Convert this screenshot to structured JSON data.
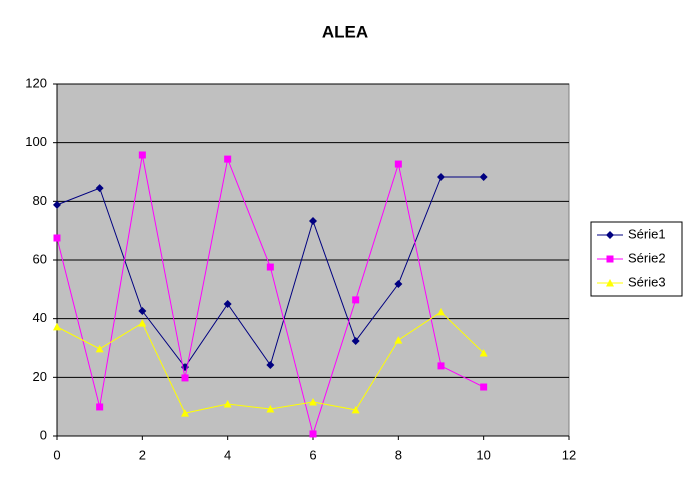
{
  "chart_data": {
    "type": "line",
    "title": "ALEA",
    "x": [
      0,
      1,
      2,
      3,
      4,
      5,
      6,
      7,
      8,
      9,
      10
    ],
    "series": [
      {
        "name": "Série1",
        "color": "#000080",
        "marker": "diamond",
        "values": [
          78.8,
          84.5,
          42.6,
          23.5,
          45,
          24.2,
          73.3,
          32.4,
          51.8,
          88.3,
          88.3
        ]
      },
      {
        "name": "Série2",
        "color": "#ff00ff",
        "marker": "square",
        "values": [
          67.5,
          9.9,
          95.8,
          19.8,
          94.4,
          57.6,
          0.7,
          46.4,
          92.7,
          23.9,
          16.7
        ]
      },
      {
        "name": "Série3",
        "color": "#ffff00",
        "marker": "triangle",
        "values": [
          37.2,
          29.7,
          38.5,
          7.8,
          10.9,
          9.2,
          11.6,
          8.9,
          32.7,
          42.3,
          28.3
        ]
      }
    ],
    "xlim": [
      0,
      12
    ],
    "xticks": [
      0,
      2,
      4,
      6,
      8,
      10,
      12
    ],
    "ylim": [
      0,
      120
    ],
    "yticks": [
      0,
      20,
      40,
      60,
      80,
      100,
      120
    ],
    "grid": true,
    "legend": "right",
    "plot_background": "#c0c0c0"
  }
}
